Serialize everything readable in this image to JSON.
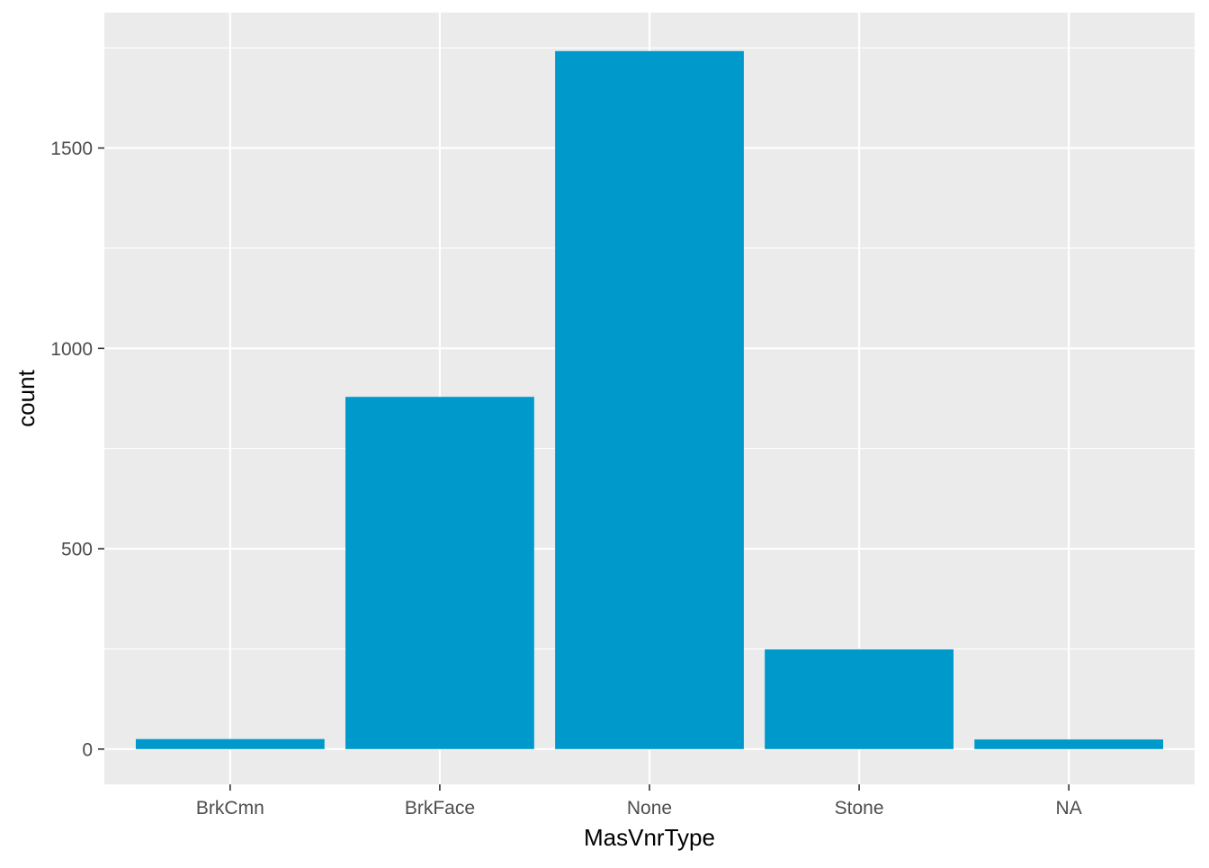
{
  "chart_data": {
    "type": "bar",
    "title": "",
    "xlabel": "MasVnrType",
    "ylabel": "count",
    "categories": [
      "BrkCmn",
      "BrkFace",
      "None",
      "Stone",
      "NA"
    ],
    "values": [
      25,
      879,
      1742,
      249,
      24
    ],
    "ylim": [
      -88,
      1838
    ],
    "yticks": [
      0,
      500,
      1000,
      1500
    ],
    "ytick_labels": [
      "0",
      "500",
      "1000",
      "1500"
    ],
    "grid": true,
    "legend": "none",
    "colors": {
      "bar": "#0099cc",
      "panel": "#ebebeb",
      "grid": "#ffffff",
      "tick": "#333333"
    }
  }
}
